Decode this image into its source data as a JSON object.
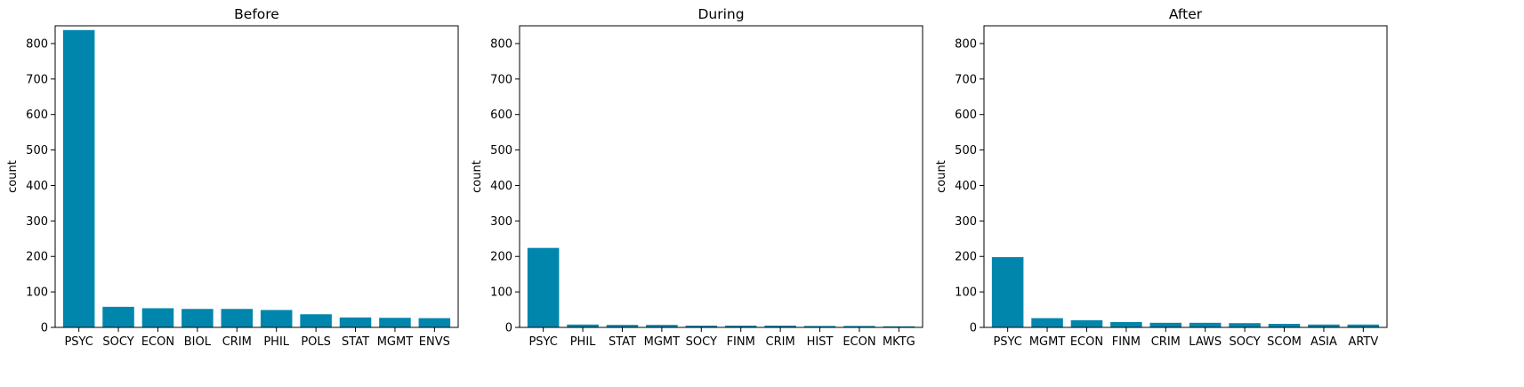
{
  "colors": {
    "bar": "#0086ad",
    "axis": "#000000",
    "background": "#ffffff"
  },
  "chart_data": [
    {
      "type": "bar",
      "title": "Before",
      "xlabel": "",
      "ylabel": "count",
      "ylim": [
        0,
        850
      ],
      "yticks": [
        0,
        100,
        200,
        300,
        400,
        500,
        600,
        700,
        800
      ],
      "categories": [
        "PSYC",
        "SOCY",
        "ECON",
        "BIOL",
        "CRIM",
        "PHIL",
        "POLS",
        "STAT",
        "MGMT",
        "ENVS"
      ],
      "values": [
        838,
        58,
        54,
        52,
        52,
        49,
        37,
        28,
        27,
        26
      ]
    },
    {
      "type": "bar",
      "title": "During",
      "xlabel": "",
      "ylabel": "count",
      "ylim": [
        0,
        850
      ],
      "yticks": [
        0,
        100,
        200,
        300,
        400,
        500,
        600,
        700,
        800
      ],
      "categories": [
        "PSYC",
        "PHIL",
        "STAT",
        "MGMT",
        "SOCY",
        "FINM",
        "CRIM",
        "HIST",
        "ECON",
        "MKTG"
      ],
      "values": [
        224,
        8,
        7,
        7,
        5,
        5,
        5,
        4,
        4,
        3
      ]
    },
    {
      "type": "bar",
      "title": "After",
      "xlabel": "",
      "ylabel": "count",
      "ylim": [
        0,
        850
      ],
      "yticks": [
        0,
        100,
        200,
        300,
        400,
        500,
        600,
        700,
        800
      ],
      "categories": [
        "PSYC",
        "MGMT",
        "ECON",
        "FINM",
        "CRIM",
        "LAWS",
        "SOCY",
        "SCOM",
        "ASIA",
        "ARTV"
      ],
      "values": [
        198,
        26,
        20,
        15,
        13,
        13,
        12,
        10,
        8,
        8
      ]
    }
  ]
}
